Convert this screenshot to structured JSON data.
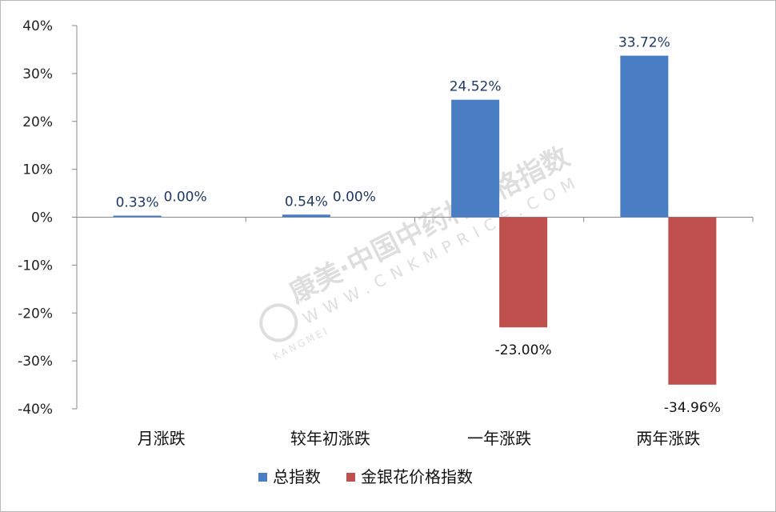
{
  "chart_data": {
    "type": "bar",
    "categories": [
      "月涨跌",
      "较年初涨跌",
      "一年涨跌",
      "两年涨跌"
    ],
    "series": [
      {
        "name": "总指数",
        "color": "#4a7ec4",
        "values": [
          0.33,
          0.54,
          24.52,
          33.72
        ],
        "labels": [
          "0.33%",
          "0.54%",
          "24.52%",
          "33.72%"
        ]
      },
      {
        "name": "金银花价格指数",
        "color": "#c0504d",
        "values": [
          0.0,
          0.0,
          -23.0,
          -34.96
        ],
        "labels": [
          "0.00%",
          "0.00%",
          "-23.00%",
          "-34.96%"
        ]
      }
    ],
    "ylim": [
      -40,
      40
    ],
    "yticks": [
      {
        "value": 40,
        "label": "40%"
      },
      {
        "value": 30,
        "label": "30%"
      },
      {
        "value": 20,
        "label": "20%"
      },
      {
        "value": 10,
        "label": "10%"
      },
      {
        "value": 0,
        "label": "0%"
      },
      {
        "value": -10,
        "label": "-10%"
      },
      {
        "value": -20,
        "label": "-20%"
      },
      {
        "value": -30,
        "label": "-30%"
      },
      {
        "value": -40,
        "label": "-40%"
      }
    ],
    "grid": false,
    "legend_position": "bottom",
    "label_colors": {
      "positive": "#1f3864",
      "negative": "#111111"
    }
  },
  "watermark": {
    "brand_cn": "康美·中国中药材价格指数",
    "brand_url": "WWW.CNKMPRICE.COM",
    "brand_en": "KANGMEI"
  }
}
